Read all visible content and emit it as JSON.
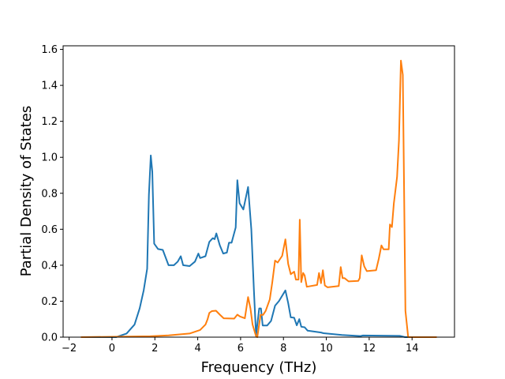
{
  "chart_data": {
    "type": "line",
    "title": "",
    "xlabel": "Frequency (THz)",
    "ylabel": "Partial Density of States",
    "xlim": [
      -2.28,
      15.98
    ],
    "ylim": [
      0,
      1.62
    ],
    "xticks": [
      -2,
      0,
      2,
      4,
      6,
      8,
      10,
      12,
      14
    ],
    "xtick_labels": [
      "−2",
      "0",
      "2",
      "4",
      "6",
      "8",
      "10",
      "12",
      "14"
    ],
    "yticks": [
      0,
      0.2,
      0.4,
      0.6,
      0.8,
      1.0,
      1.2,
      1.4,
      1.6
    ],
    "ytick_labels": [
      "0.0",
      "0.2",
      "0.4",
      "0.6",
      "0.8",
      "1.0",
      "1.2",
      "1.4",
      "1.6"
    ],
    "grid": false,
    "legend": "none",
    "series": [
      {
        "color": "#1f77b4",
        "points": [
          [
            -1.45,
            0
          ],
          [
            0.19,
            0
          ],
          [
            0.68,
            0.02
          ],
          [
            1.05,
            0.07
          ],
          [
            1.29,
            0.16
          ],
          [
            1.48,
            0.26
          ],
          [
            1.64,
            0.38
          ],
          [
            1.72,
            0.79
          ],
          [
            1.81,
            1.01
          ],
          [
            1.88,
            0.92
          ],
          [
            1.97,
            0.52
          ],
          [
            2.15,
            0.49
          ],
          [
            2.37,
            0.485
          ],
          [
            2.64,
            0.4
          ],
          [
            2.89,
            0.4
          ],
          [
            3.07,
            0.42
          ],
          [
            3.21,
            0.45
          ],
          [
            3.32,
            0.4
          ],
          [
            3.62,
            0.395
          ],
          [
            3.87,
            0.42
          ],
          [
            4.03,
            0.465
          ],
          [
            4.11,
            0.44
          ],
          [
            4.36,
            0.45
          ],
          [
            4.54,
            0.53
          ],
          [
            4.7,
            0.55
          ],
          [
            4.79,
            0.545
          ],
          [
            4.87,
            0.577
          ],
          [
            5.03,
            0.51
          ],
          [
            5.19,
            0.465
          ],
          [
            5.36,
            0.47
          ],
          [
            5.46,
            0.525
          ],
          [
            5.58,
            0.525
          ],
          [
            5.77,
            0.61
          ],
          [
            5.85,
            0.873
          ],
          [
            5.95,
            0.745
          ],
          [
            6.13,
            0.71
          ],
          [
            6.35,
            0.835
          ],
          [
            6.5,
            0.6
          ],
          [
            6.62,
            0.26
          ],
          [
            6.72,
            0.01
          ],
          [
            6.87,
            0.16
          ],
          [
            6.95,
            0.16
          ],
          [
            7.03,
            0.065
          ],
          [
            7.24,
            0.065
          ],
          [
            7.42,
            0.09
          ],
          [
            7.61,
            0.175
          ],
          [
            7.79,
            0.2
          ],
          [
            8.09,
            0.26
          ],
          [
            8.22,
            0.19
          ],
          [
            8.34,
            0.11
          ],
          [
            8.5,
            0.108
          ],
          [
            8.62,
            0.066
          ],
          [
            8.74,
            0.1
          ],
          [
            8.83,
            0.058
          ],
          [
            8.99,
            0.055
          ],
          [
            9.13,
            0.036
          ],
          [
            9.75,
            0.026
          ],
          [
            9.87,
            0.022
          ],
          [
            10.73,
            0.012
          ],
          [
            11.59,
            0.006
          ],
          [
            11.71,
            0.009
          ],
          [
            13.43,
            0.007
          ],
          [
            13.67,
            0
          ],
          [
            15.15,
            0
          ]
        ]
      },
      {
        "color": "#ff7f0e",
        "points": [
          [
            -1.45,
            0
          ],
          [
            1.78,
            0.005
          ],
          [
            2.64,
            0.01
          ],
          [
            3.62,
            0.02
          ],
          [
            4.11,
            0.04
          ],
          [
            4.36,
            0.07
          ],
          [
            4.46,
            0.1
          ],
          [
            4.54,
            0.135
          ],
          [
            4.66,
            0.145
          ],
          [
            4.85,
            0.147
          ],
          [
            5.03,
            0.125
          ],
          [
            5.21,
            0.105
          ],
          [
            5.7,
            0.103
          ],
          [
            5.85,
            0.125
          ],
          [
            5.97,
            0.115
          ],
          [
            6.2,
            0.105
          ],
          [
            6.35,
            0.223
          ],
          [
            6.46,
            0.16
          ],
          [
            6.56,
            0.07
          ],
          [
            6.72,
            0.005
          ],
          [
            6.78,
            0
          ],
          [
            6.93,
            0.124
          ],
          [
            7.05,
            0.124
          ],
          [
            7.17,
            0.146
          ],
          [
            7.36,
            0.21
          ],
          [
            7.48,
            0.306
          ],
          [
            7.61,
            0.426
          ],
          [
            7.73,
            0.415
          ],
          [
            7.94,
            0.452
          ],
          [
            8.09,
            0.544
          ],
          [
            8.22,
            0.408
          ],
          [
            8.34,
            0.35
          ],
          [
            8.5,
            0.364
          ],
          [
            8.58,
            0.32
          ],
          [
            8.7,
            0.32
          ],
          [
            8.76,
            0.653
          ],
          [
            8.83,
            0.306
          ],
          [
            8.92,
            0.357
          ],
          [
            8.99,
            0.343
          ],
          [
            9.09,
            0.28
          ],
          [
            9.57,
            0.29
          ],
          [
            9.66,
            0.357
          ],
          [
            9.75,
            0.3
          ],
          [
            9.84,
            0.372
          ],
          [
            9.93,
            0.287
          ],
          [
            10.06,
            0.277
          ],
          [
            10.58,
            0.284
          ],
          [
            10.67,
            0.39
          ],
          [
            10.76,
            0.328
          ],
          [
            10.85,
            0.328
          ],
          [
            11.04,
            0.31
          ],
          [
            11.49,
            0.313
          ],
          [
            11.56,
            0.328
          ],
          [
            11.65,
            0.455
          ],
          [
            11.77,
            0.394
          ],
          [
            11.89,
            0.367
          ],
          [
            12.32,
            0.372
          ],
          [
            12.45,
            0.437
          ],
          [
            12.57,
            0.51
          ],
          [
            12.67,
            0.488
          ],
          [
            12.91,
            0.488
          ],
          [
            12.97,
            0.627
          ],
          [
            13.06,
            0.612
          ],
          [
            13.15,
            0.743
          ],
          [
            13.3,
            0.89
          ],
          [
            13.39,
            1.093
          ],
          [
            13.48,
            1.538
          ],
          [
            13.57,
            1.458
          ],
          [
            13.69,
            0.146
          ],
          [
            13.82,
            0
          ],
          [
            15.15,
            0
          ]
        ]
      }
    ]
  }
}
